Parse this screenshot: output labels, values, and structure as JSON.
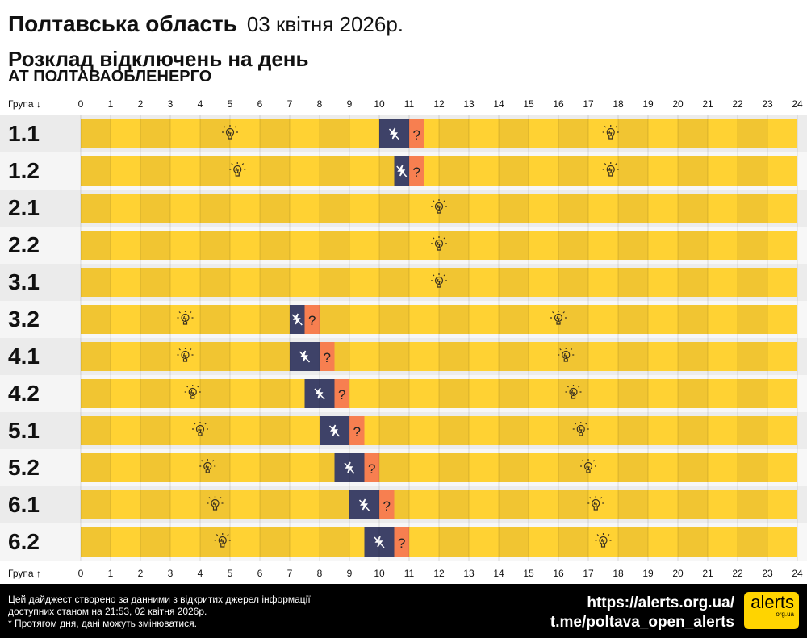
{
  "header": {
    "region": "Полтавська область",
    "date": "03 квітня 2026р.",
    "subtitle": "Розклад відключень на день",
    "company": "АТ ПОЛТАВАОБЛЕНЕРГО"
  },
  "chart_data": {
    "type": "timeline",
    "top_axis_label": "Група ↓",
    "bottom_axis_label": "Група ↑",
    "x_ticks": [
      "0",
      "1",
      "2",
      "3",
      "4",
      "5",
      "6",
      "7",
      "8",
      "9",
      "10",
      "11",
      "12",
      "13",
      "14",
      "15",
      "16",
      "17",
      "18",
      "19",
      "20",
      "21",
      "22",
      "23",
      "24"
    ],
    "xlim": [
      0,
      24
    ],
    "colors": {
      "on_even": "#f1c532",
      "on_odd": "#ffd233",
      "off": "#3e4268",
      "unknown": "#f77f50"
    },
    "groups": [
      {
        "name": "1.1",
        "off": [
          10,
          11
        ],
        "unknown": [
          11,
          11.5
        ]
      },
      {
        "name": "1.2",
        "off": [
          10.5,
          11
        ],
        "unknown": [
          11,
          11.5
        ]
      },
      {
        "name": "2.1",
        "off": null,
        "unknown": null
      },
      {
        "name": "2.2",
        "off": null,
        "unknown": null
      },
      {
        "name": "3.1",
        "off": null,
        "unknown": null
      },
      {
        "name": "3.2",
        "off": [
          7,
          7.5
        ],
        "unknown": [
          7.5,
          8
        ]
      },
      {
        "name": "4.1",
        "off": [
          7,
          8
        ],
        "unknown": [
          8,
          8.5
        ]
      },
      {
        "name": "4.2",
        "off": [
          7.5,
          8.5
        ],
        "unknown": [
          8.5,
          9
        ]
      },
      {
        "name": "5.1",
        "off": [
          8,
          9
        ],
        "unknown": [
          9,
          9.5
        ]
      },
      {
        "name": "5.2",
        "off": [
          8.5,
          9.5
        ],
        "unknown": [
          9.5,
          10
        ]
      },
      {
        "name": "6.1",
        "off": [
          9,
          10
        ],
        "unknown": [
          10,
          10.5
        ]
      },
      {
        "name": "6.2",
        "off": [
          9.5,
          10.5
        ],
        "unknown": [
          10.5,
          11
        ]
      }
    ],
    "unknown_symbol": "?"
  },
  "footer": {
    "line1": "Цей дайджест створено за данними з відкритих джерел інформації",
    "line2": "доступних станом на 21:53, 02 квітня 2026р.",
    "line3": "* Протягом дня, дані можуть змінюватися.",
    "url": "https://alerts.org.ua/",
    "telegram": "t.me/poltava_open_alerts",
    "logo_text": "alerts",
    "logo_sub": "org.ua"
  }
}
